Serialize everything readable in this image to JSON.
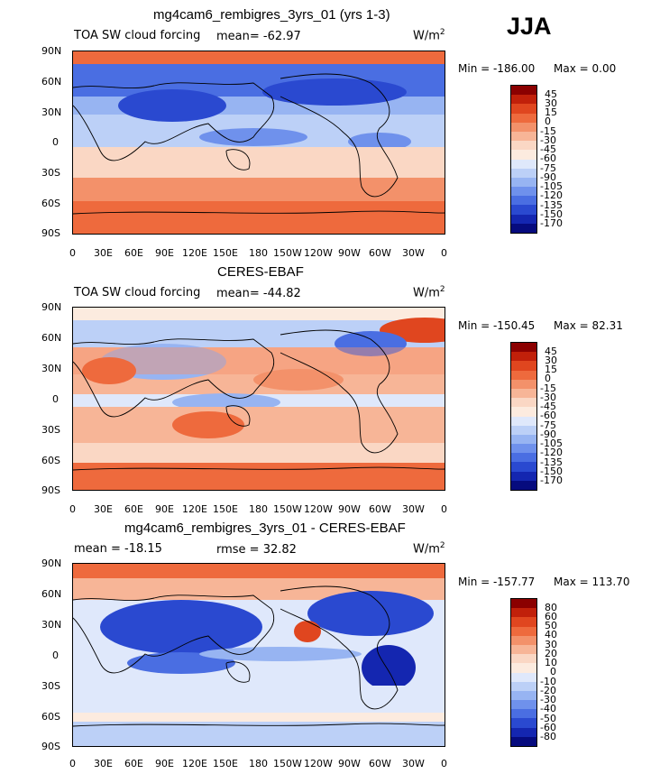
{
  "season": "JJA",
  "units": "W/m",
  "units_exp": "2",
  "lat_ticks": [
    "90N",
    "60N",
    "30N",
    "0",
    "30S",
    "60S",
    "90S"
  ],
  "lon_ticks": [
    "0",
    "30E",
    "60E",
    "90E",
    "120E",
    "150E",
    "180",
    "150W",
    "120W",
    "90W",
    "60W",
    "30W",
    "0"
  ],
  "panels": [
    {
      "title": "mg4cam6_rembigres_3yrs_01 (yrs 1-3)",
      "left_label": "TOA SW cloud forcing",
      "stat_label": "mean= -62.97",
      "min_text": "Min = -186.00",
      "max_text": "Max =    0.00",
      "levels": [
        "45",
        "30",
        "15",
        "0",
        "-15",
        "-30",
        "-45",
        "-60",
        "-75",
        "-90",
        "-105",
        "-120",
        "-135",
        "-150",
        "-170"
      ]
    },
    {
      "title": "CERES-EBAF",
      "left_label": "TOA SW cloud forcing",
      "stat_label": "mean= -44.82",
      "min_text": "Min = -150.45",
      "max_text": "Max =  82.31",
      "levels": [
        "45",
        "30",
        "15",
        "0",
        "-15",
        "-30",
        "-45",
        "-60",
        "-75",
        "-90",
        "-105",
        "-120",
        "-135",
        "-150",
        "-170"
      ]
    },
    {
      "title": "mg4cam6_rembigres_3yrs_01 - CERES-EBAF",
      "left_label": "mean = -18.15",
      "stat_label": "rmse =  32.82",
      "min_text": "Min = -157.77",
      "max_text": "Max = 113.70",
      "levels": [
        "80",
        "60",
        "50",
        "40",
        "30",
        "20",
        "10",
        "0",
        "-10",
        "-20",
        "-30",
        "-40",
        "-50",
        "-60",
        "-80"
      ]
    }
  ],
  "colorbar_colors": [
    "#8b0000",
    "#c1200a",
    "#e0461f",
    "#ee6a3d",
    "#f3916a",
    "#f7b597",
    "#fad7c4",
    "#fcebdf",
    "#dfe8fb",
    "#bcd0f7",
    "#97b4f2",
    "#6f91ec",
    "#4a6ee2",
    "#2a49d0",
    "#1426b0",
    "#060b7e"
  ]
}
